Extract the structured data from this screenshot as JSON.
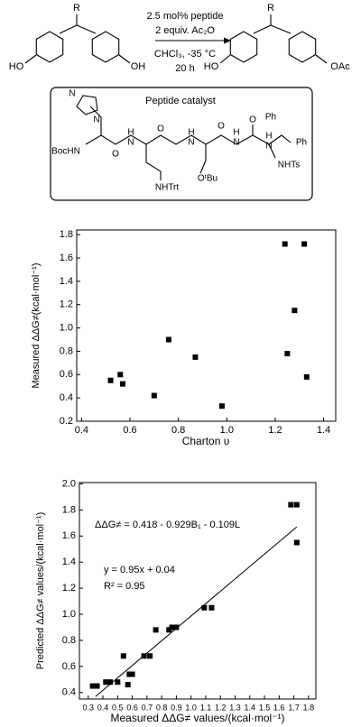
{
  "scheme": {
    "reactant": {
      "substituent": "R",
      "left_group": "HO",
      "right_group": "OH"
    },
    "conditions": [
      "2.5 mol% peptide",
      "2 equiv. Ac₂O",
      "CHCl₃, -35 °C",
      "20 h"
    ],
    "product": {
      "substituent": "R",
      "left_group": "HO",
      "right_group": "OAc"
    },
    "catalyst": {
      "title": "Peptide catalyst",
      "labels": [
        "N",
        "N",
        "BocHN",
        "O",
        "N",
        "H",
        "O",
        "NHTrt",
        "N",
        "H",
        "O",
        "N",
        "H",
        "O",
        "OᵗBu",
        "N",
        "H",
        "Ph",
        "Ph",
        "NHTs"
      ]
    }
  },
  "chart_data": [
    {
      "type": "scatter",
      "xlabel": "Charton υ",
      "ylabel": "Measured ΔΔG≠(kcal·mol⁻¹)",
      "color": "#000000",
      "x": [
        0.52,
        0.56,
        0.57,
        0.7,
        0.76,
        0.87,
        0.98,
        1.24,
        1.25,
        1.28,
        1.32,
        1.33
      ],
      "values": [
        0.55,
        0.6,
        0.52,
        0.42,
        0.9,
        0.75,
        0.33,
        1.72,
        0.78,
        1.15,
        1.72,
        0.58
      ],
      "xlim": [
        0.38,
        1.45
      ],
      "ylim": [
        0.2,
        1.84
      ],
      "xticks": [
        0.4,
        0.6,
        0.8,
        {
          "value": 1,
          "label": "1.0"
        },
        1.2,
        1.4
      ],
      "yticks": [
        0.2,
        0.4,
        0.6,
        0.8,
        {
          "value": 1,
          "label": "1.0"
        },
        1.2,
        1.4,
        1.6,
        1.8
      ]
    },
    {
      "type": "scatter",
      "xlabel": "Measured ΔΔG≠ values/(kcal·mol⁻¹)",
      "ylabel": "Predicted ΔΔG≠ values/(kcal·mol⁻¹)",
      "color": "#000000",
      "x": [
        0.33,
        0.36,
        0.42,
        0.45,
        0.5,
        0.54,
        0.57,
        0.58,
        0.6,
        0.68,
        0.72,
        0.76,
        0.85,
        0.87,
        0.9,
        1.09,
        1.14,
        1.68,
        1.72,
        1.72
      ],
      "values": [
        0.45,
        0.45,
        0.48,
        0.48,
        0.48,
        0.68,
        0.46,
        0.54,
        0.54,
        0.68,
        0.68,
        0.88,
        0.88,
        0.9,
        0.9,
        1.05,
        1.05,
        1.84,
        1.84,
        1.55
      ],
      "fit_line": {
        "x": [
          0.35,
          1.72
        ],
        "values": [
          0.37,
          1.67
        ]
      },
      "annotations": [
        "ΔΔG≠ = 0.418 - 0.929B₁ - 0.109L",
        "y = 0.95x + 0.04",
        "R² = 0.95"
      ],
      "xlim": [
        0.24,
        1.85
      ],
      "ylim": [
        0.35,
        2.01
      ],
      "xticks": [
        0.3,
        0.4,
        0.5,
        0.6,
        0.7,
        0.8,
        0.9,
        {
          "value": 1,
          "label": "1.0"
        },
        1.1,
        1.2,
        1.3,
        1.4,
        1.5,
        1.6,
        1.7,
        1.8
      ],
      "yticks": [
        0.4,
        0.6,
        0.8,
        {
          "value": 1,
          "label": "1.0"
        },
        1.2,
        1.4,
        1.6,
        1.8,
        {
          "value": 2,
          "label": "2.0"
        }
      ]
    }
  ]
}
